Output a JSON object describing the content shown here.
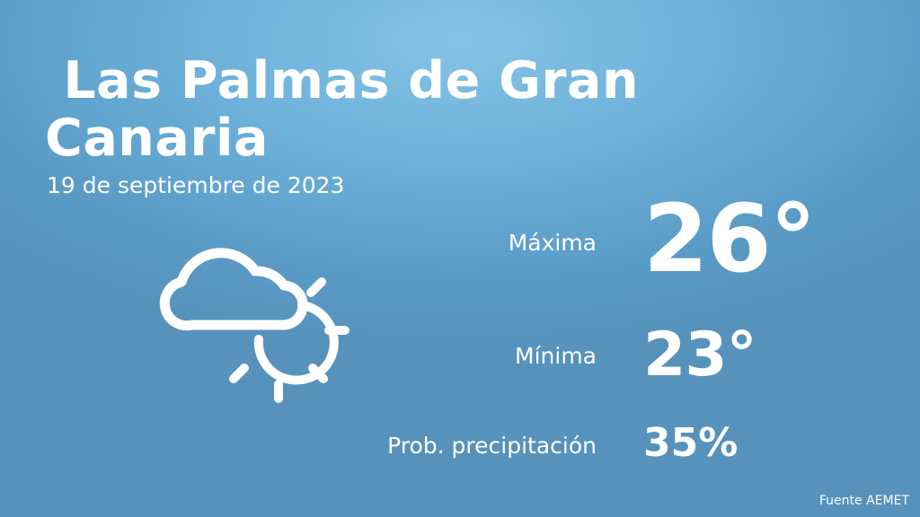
{
  "location": {
    "city": " Las Palmas de Gran\nCanaria"
  },
  "date": "19 de septiembre de 2023",
  "weather_icon": "cloud-sun-icon",
  "forecast": {
    "max": {
      "label": "Máxima",
      "value": "26°"
    },
    "min": {
      "label": "Mínima",
      "value": "23°"
    },
    "precipitation": {
      "label": "Prob. precipitación",
      "value": "35%"
    }
  },
  "source": "Fuente AEMET",
  "colors": {
    "background_top": "#86c3e6",
    "background_bottom": "#5692bb",
    "text": "#ffffff"
  }
}
